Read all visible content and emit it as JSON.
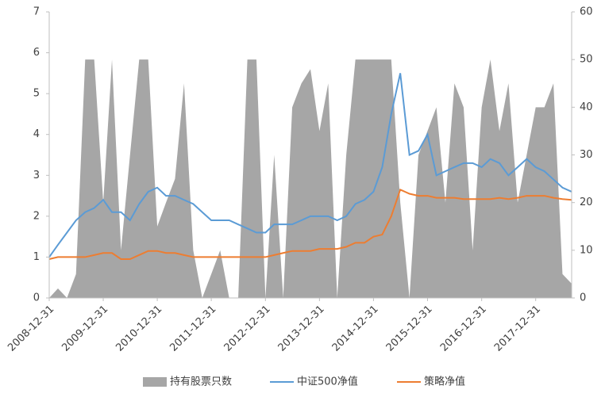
{
  "chart_data": {
    "type": "combo",
    "x": [
      "2008-12-31",
      "2009-02-28",
      "2009-04-30",
      "2009-06-30",
      "2009-08-31",
      "2009-10-31",
      "2009-12-31",
      "2010-02-28",
      "2010-04-30",
      "2010-06-30",
      "2010-08-31",
      "2010-10-31",
      "2010-12-31",
      "2011-02-28",
      "2011-04-30",
      "2011-06-30",
      "2011-08-31",
      "2011-10-31",
      "2011-12-31",
      "2012-02-29",
      "2012-04-30",
      "2012-06-30",
      "2012-08-31",
      "2012-10-31",
      "2012-12-31",
      "2013-02-28",
      "2013-04-30",
      "2013-06-30",
      "2013-08-31",
      "2013-10-31",
      "2013-12-31",
      "2014-02-28",
      "2014-04-30",
      "2014-06-30",
      "2014-08-31",
      "2014-10-31",
      "2014-12-31",
      "2015-02-28",
      "2015-04-30",
      "2015-06-30",
      "2015-08-31",
      "2015-10-31",
      "2015-12-31",
      "2016-02-29",
      "2016-04-30",
      "2016-06-30",
      "2016-08-31",
      "2016-10-31",
      "2016-12-31",
      "2017-02-28",
      "2017-04-30",
      "2017-06-30",
      "2017-08-31",
      "2017-10-31",
      "2017-12-31",
      "2018-02-28",
      "2018-04-30",
      "2018-06-30",
      "2018-08-31"
    ],
    "xlim": [
      "2008-12-31",
      "2018-08-31"
    ],
    "xticks": [
      "2008-12-31",
      "2009-12-31",
      "2010-12-31",
      "2011-12-31",
      "2012-12-31",
      "2013-12-31",
      "2014-12-31",
      "2015-12-31",
      "2016-12-31",
      "2017-12-31"
    ],
    "ylim": [
      0,
      7
    ],
    "yticks": [
      0,
      1,
      2,
      3,
      4,
      5,
      6,
      7
    ],
    "y2lim": [
      0,
      60
    ],
    "y2ticks": [
      0,
      10,
      20,
      30,
      40,
      50,
      60
    ],
    "series": [
      {
        "name": "持有股票只数",
        "kind": "area",
        "axis": "y2",
        "color": "#a6a6a6",
        "values": [
          0,
          2,
          0,
          5,
          50,
          50,
          20,
          50,
          10,
          30,
          50,
          50,
          15,
          20,
          25,
          45,
          10,
          0,
          5,
          10,
          0,
          0,
          50,
          50,
          0,
          30,
          0,
          40,
          45,
          48,
          35,
          45,
          0,
          30,
          50,
          50,
          50,
          50,
          50,
          20,
          0,
          30,
          35,
          40,
          20,
          45,
          40,
          10,
          40,
          50,
          35,
          45,
          20,
          30,
          40,
          40,
          45,
          5,
          3
        ]
      },
      {
        "name": "中证500净值",
        "kind": "line",
        "color": "#5b9bd5",
        "values": [
          1.0,
          1.3,
          1.6,
          1.9,
          2.1,
          2.2,
          2.4,
          2.1,
          2.1,
          1.9,
          2.3,
          2.6,
          2.7,
          2.5,
          2.5,
          2.4,
          2.3,
          2.1,
          1.9,
          1.9,
          1.9,
          1.8,
          1.7,
          1.6,
          1.6,
          1.8,
          1.8,
          1.8,
          1.9,
          2.0,
          2.0,
          2.0,
          1.9,
          2.0,
          2.3,
          2.4,
          2.6,
          3.2,
          4.5,
          5.5,
          3.5,
          3.6,
          4.0,
          3.0,
          3.1,
          3.2,
          3.3,
          3.3,
          3.2,
          3.4,
          3.3,
          3.0,
          3.2,
          3.4,
          3.2,
          3.1,
          2.9,
          2.7,
          2.6
        ]
      },
      {
        "name": "策略净值",
        "kind": "line",
        "color": "#ed7d31",
        "values": [
          0.95,
          1.0,
          1.0,
          1.0,
          1.0,
          1.05,
          1.1,
          1.1,
          0.95,
          0.95,
          1.05,
          1.15,
          1.15,
          1.1,
          1.1,
          1.05,
          1.0,
          1.0,
          1.0,
          1.0,
          1.0,
          1.0,
          1.0,
          1.0,
          1.0,
          1.05,
          1.1,
          1.15,
          1.15,
          1.15,
          1.2,
          1.2,
          1.2,
          1.25,
          1.35,
          1.35,
          1.5,
          1.55,
          2.0,
          2.65,
          2.55,
          2.5,
          2.5,
          2.45,
          2.45,
          2.45,
          2.42,
          2.42,
          2.42,
          2.42,
          2.45,
          2.42,
          2.45,
          2.5,
          2.5,
          2.5,
          2.45,
          2.42,
          2.4
        ]
      }
    ]
  }
}
